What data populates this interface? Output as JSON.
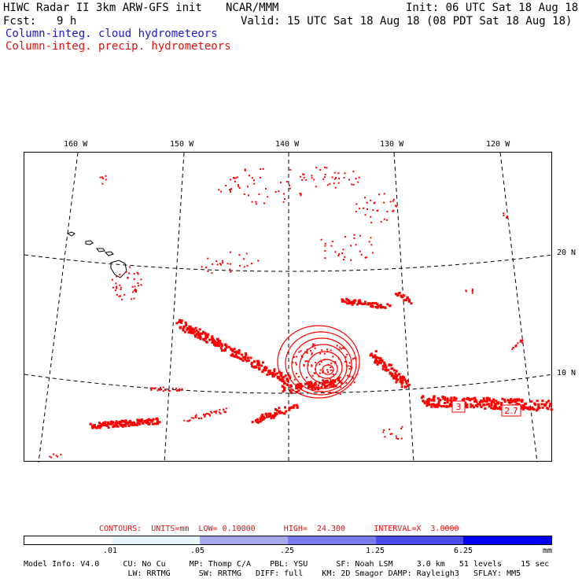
{
  "header": {
    "title": "HIWC Radar II 3km ARW-GFS init",
    "org": "NCAR/MMM",
    "init": "Init: 06 UTC Sat 18 Aug 18",
    "fcst_label": "Fcst:",
    "fcst_value": "9 h",
    "valid": "Valid: 15 UTC Sat 18 Aug 18 (08 PDT Sat 18 Aug 18)"
  },
  "legend": {
    "cloud": "Column-integ. cloud hydrometeors",
    "precip": "Column-integ. precip. hydrometeors",
    "cloud_color": "#1a1acc",
    "precip_color": "#e01010"
  },
  "map": {
    "longitude_labels": [
      "160 W",
      "150 W",
      "140 W",
      "130 W",
      "120 W"
    ],
    "latitude_labels": [
      "20 N",
      "10 N"
    ],
    "contour_labels": [
      "3",
      "2.7"
    ],
    "precip_color": "#ff0000"
  },
  "contours_info": {
    "text": "CONTOURS:  UNITS=mm  LOW= 0.10000      HIGH=  24.300      INTERVAL=X  3.0000"
  },
  "colorbar": {
    "labels": [
      ".01",
      ".05",
      ".25",
      "1.25",
      "6.25"
    ],
    "unit": "mm",
    "colors": [
      "#ffffff",
      "#e6f5fa",
      "#a8a8ea",
      "#7a7aee",
      "#4a4af0",
      "#0000ee"
    ]
  },
  "footer": {
    "line1": "Model Info: V4.0     CU: No Cu     MP: Thomp C/A    PBL: YSU      SF: Noah LSM     3.0 km   51 levels    15 sec",
    "line2": "                      LW: RRTMG      SW: RRTMG   DIFF: full    KM: 2D Smagor DAMP: Rayleigh3   SFLAY: MM5"
  }
}
